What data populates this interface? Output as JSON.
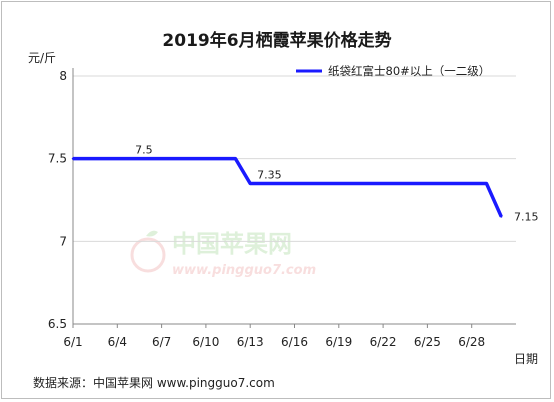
{
  "chart_data": {
    "type": "line",
    "title": "2019年6月栖霞苹果价格走势",
    "ylabel": "元/斤",
    "xlabel": "日期",
    "ylim": [
      6.5,
      8
    ],
    "yticks": [
      "8",
      "7.5",
      "7",
      "6.5"
    ],
    "categories": [
      "6/1",
      "6/4",
      "6/7",
      "6/10",
      "6/13",
      "6/16",
      "6/19",
      "6/22",
      "6/25",
      "6/28"
    ],
    "grid": true,
    "legend_position": "top-right",
    "series": [
      {
        "name": "纸袋红富士80#以上（一二级）",
        "color": "#1a1aff",
        "points": [
          {
            "x": "6/1",
            "y": 7.5
          },
          {
            "x": "6/12",
            "y": 7.5
          },
          {
            "x": "6/13",
            "y": 7.35
          },
          {
            "x": "6/29",
            "y": 7.35
          },
          {
            "x": "6/30",
            "y": 7.15
          }
        ]
      }
    ],
    "annotations": [
      "7.5",
      "7.35",
      "7.15"
    ]
  },
  "watermark": {
    "text_cn": "中国苹果网",
    "url": "www.pingguo7.com"
  },
  "source": "数据来源：中国苹果网 www.pingguo7.com"
}
